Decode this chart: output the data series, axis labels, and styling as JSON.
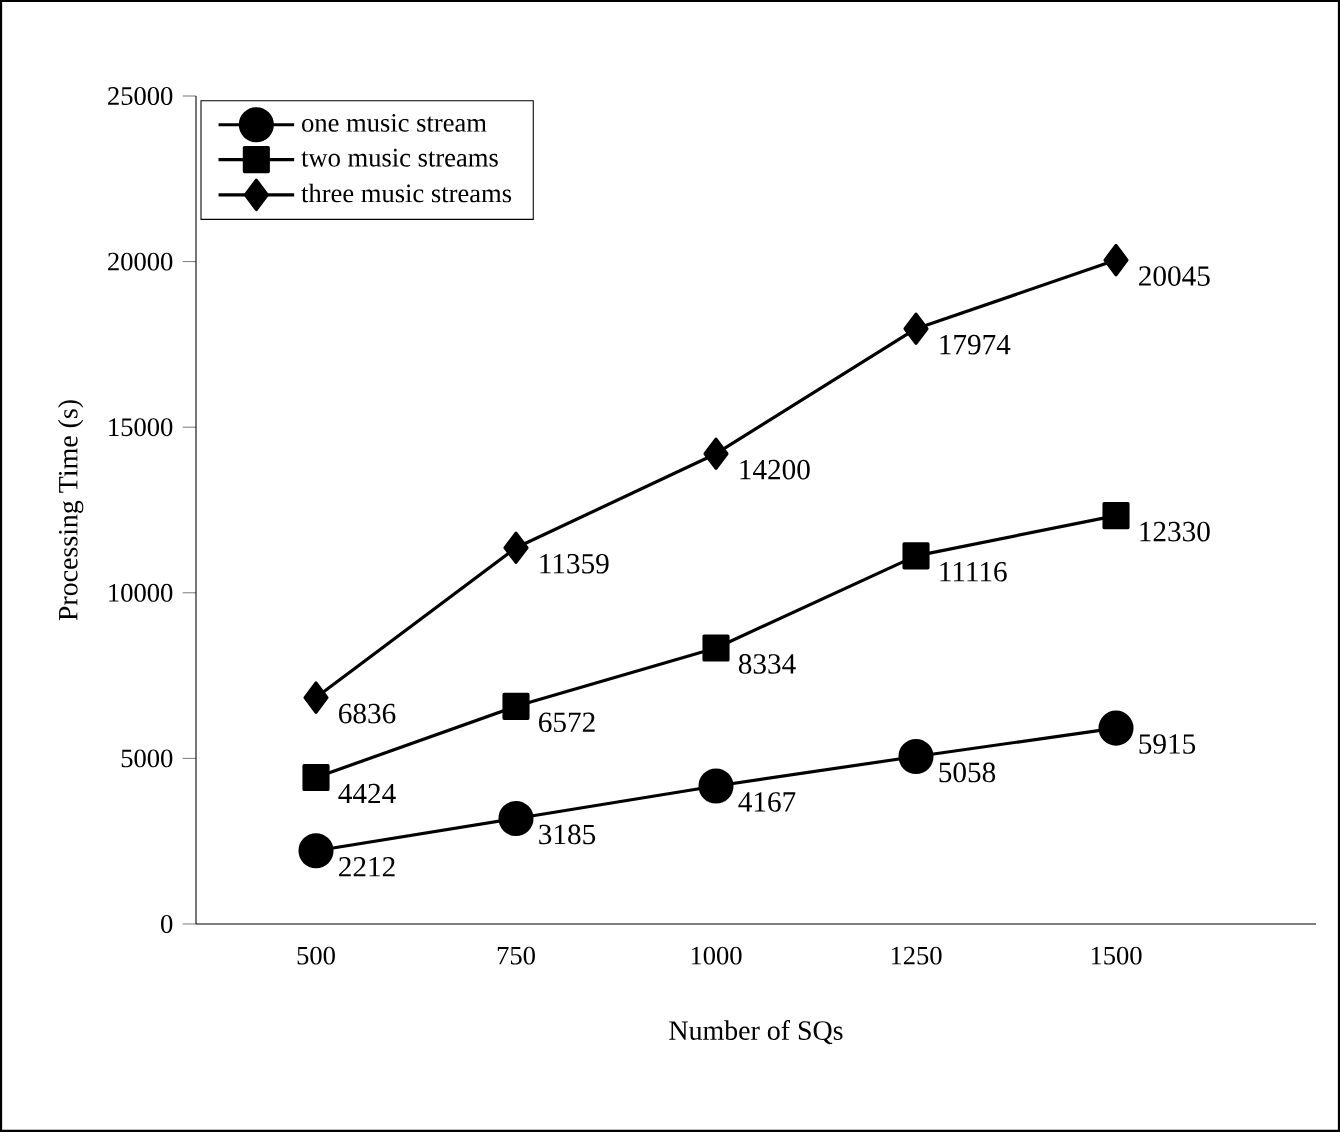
{
  "chart_data": {
    "type": "line",
    "xlabel": "Number of SQs",
    "ylabel": "Processing Time (s)",
    "categories": [
      "500",
      "750",
      "1000",
      "1250",
      "1500"
    ],
    "series": [
      {
        "name": "one music stream",
        "color": "#000000",
        "marker": "circle",
        "values": [
          2212,
          3185,
          4167,
          5058,
          5915
        ]
      },
      {
        "name": "two music streams",
        "color": "#000000",
        "marker": "square",
        "values": [
          4424,
          6572,
          8334,
          11116,
          12330
        ]
      },
      {
        "name": "three music streams",
        "color": "#000000",
        "marker": "diamond",
        "values": [
          6836,
          11359,
          14200,
          17974,
          20045
        ]
      }
    ],
    "ylim": [
      0,
      25000
    ],
    "yticks": [
      0,
      5000,
      10000,
      15000,
      20000,
      25000
    ],
    "grid": false,
    "legend": "top left",
    "data_labels": true,
    "line_style": "solid"
  }
}
